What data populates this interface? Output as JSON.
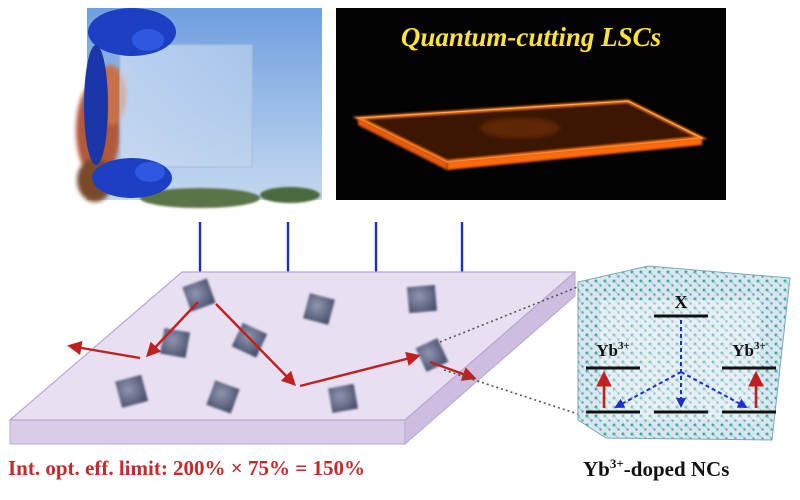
{
  "photo_right": {
    "title": "Quantum-cutting LSCs"
  },
  "levels": {
    "top_label": "X",
    "left_label_base": "Yb",
    "left_label_sup": "3+",
    "right_label_base": "Yb",
    "right_label_sup": "3+"
  },
  "efficiency_text": "Int. opt. eff. limit: 200% × 75% = 150%",
  "nc_label": {
    "base": "Yb",
    "sup": "3+",
    "suffix": "-doped NCs"
  },
  "colors": {
    "incident_arrow": "#1b2fd0",
    "emission_arrow": "#c02020",
    "slab_top": "#e9dff2",
    "slab_edge": "#b9a6d2",
    "efficiency_text": "#c42a2a",
    "photo_title": "#ffe23a",
    "glow": "#ff7a1a"
  }
}
